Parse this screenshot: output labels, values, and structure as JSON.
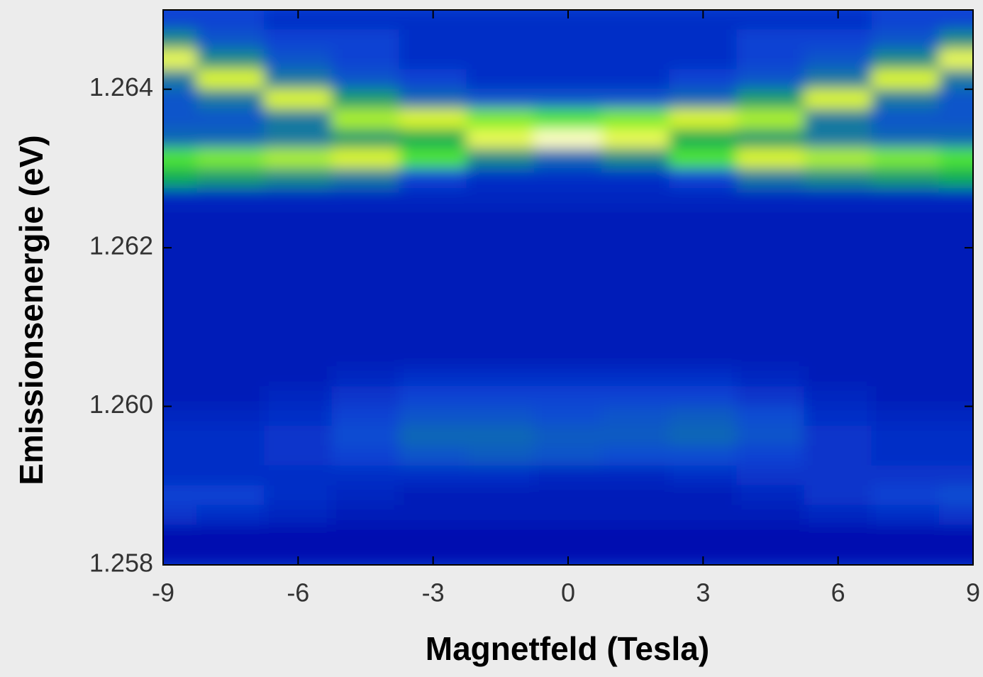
{
  "chart_data": {
    "type": "heatmap",
    "x_label": "Magnetfeld (Tesla)",
    "y_label": "Emissionsenergie (eV)",
    "x": [
      -9,
      -7.5,
      -6,
      -4.5,
      -3,
      -1.5,
      0,
      1.5,
      3,
      4.5,
      6,
      7.5,
      9
    ],
    "y": [
      1.264875,
      1.264625,
      1.264375,
      1.264125,
      1.263875,
      1.263625,
      1.263375,
      1.263125,
      1.262875,
      1.262625,
      1.262375,
      1.262125,
      1.261875,
      1.261625,
      1.261375,
      1.261125,
      1.260875,
      1.260625,
      1.260375,
      1.260125,
      1.259875,
      1.259625,
      1.259375,
      1.259125,
      1.258875,
      1.258625,
      1.258375,
      1.258125
    ],
    "z": [
      [
        25,
        25,
        20,
        20,
        20,
        20,
        20,
        20,
        20,
        20,
        20,
        25,
        25
      ],
      [
        45,
        30,
        25,
        25,
        20,
        20,
        20,
        20,
        20,
        25,
        25,
        30,
        45
      ],
      [
        90,
        45,
        30,
        25,
        20,
        20,
        20,
        20,
        20,
        25,
        30,
        45,
        90
      ],
      [
        40,
        85,
        40,
        30,
        25,
        20,
        20,
        20,
        25,
        30,
        40,
        85,
        40
      ],
      [
        30,
        40,
        85,
        50,
        35,
        30,
        30,
        30,
        35,
        50,
        85,
        40,
        30
      ],
      [
        30,
        30,
        40,
        80,
        85,
        75,
        70,
        75,
        85,
        80,
        40,
        30,
        30
      ],
      [
        35,
        35,
        40,
        50,
        55,
        90,
        100,
        90,
        55,
        50,
        40,
        35,
        35
      ],
      [
        70,
        75,
        80,
        85,
        70,
        45,
        35,
        45,
        70,
        85,
        80,
        75,
        70
      ],
      [
        55,
        50,
        45,
        40,
        25,
        20,
        20,
        20,
        25,
        40,
        45,
        50,
        55
      ],
      [
        18,
        18,
        18,
        18,
        18,
        18,
        18,
        18,
        18,
        18,
        18,
        18,
        18
      ],
      [
        15,
        15,
        15,
        15,
        15,
        15,
        15,
        15,
        15,
        15,
        15,
        15,
        15
      ],
      [
        15,
        15,
        15,
        15,
        15,
        15,
        15,
        15,
        15,
        15,
        15,
        15,
        15
      ],
      [
        15,
        15,
        15,
        15,
        15,
        15,
        15,
        15,
        15,
        15,
        15,
        15,
        15
      ],
      [
        15,
        15,
        15,
        15,
        15,
        15,
        15,
        15,
        15,
        15,
        15,
        15,
        15
      ],
      [
        15,
        15,
        15,
        15,
        15,
        15,
        15,
        15,
        15,
        15,
        15,
        15,
        15
      ],
      [
        15,
        15,
        15,
        15,
        15,
        15,
        15,
        15,
        15,
        15,
        15,
        15,
        15
      ],
      [
        15,
        15,
        15,
        15,
        15,
        15,
        15,
        15,
        15,
        15,
        15,
        15,
        15
      ],
      [
        15,
        15,
        15,
        15,
        15,
        15,
        15,
        15,
        15,
        15,
        15,
        15,
        15
      ],
      [
        15,
        15,
        15,
        18,
        20,
        20,
        20,
        20,
        20,
        18,
        15,
        15,
        15
      ],
      [
        15,
        15,
        18,
        22,
        25,
        25,
        25,
        25,
        25,
        22,
        18,
        15,
        15
      ],
      [
        18,
        18,
        20,
        25,
        30,
        30,
        28,
        30,
        32,
        28,
        20,
        18,
        18
      ],
      [
        20,
        20,
        22,
        28,
        35,
        35,
        32,
        32,
        35,
        30,
        22,
        20,
        20
      ],
      [
        20,
        20,
        22,
        25,
        30,
        32,
        30,
        28,
        28,
        25,
        22,
        20,
        20
      ],
      [
        20,
        20,
        20,
        20,
        20,
        20,
        18,
        18,
        20,
        22,
        22,
        22,
        22
      ],
      [
        25,
        25,
        20,
        18,
        15,
        15,
        15,
        15,
        15,
        18,
        22,
        25,
        28
      ],
      [
        22,
        20,
        18,
        15,
        15,
        15,
        15,
        15,
        15,
        15,
        18,
        20,
        22
      ],
      [
        12,
        12,
        12,
        12,
        12,
        12,
        12,
        12,
        12,
        12,
        12,
        12,
        12
      ],
      [
        12,
        12,
        12,
        12,
        12,
        12,
        12,
        12,
        12,
        12,
        12,
        12,
        12
      ]
    ],
    "colorscale": [
      "#0010b0",
      "#0a48d8",
      "#157e9a",
      "#10b050",
      "#50e830",
      "#e0f820",
      "#ffffc0"
    ],
    "xlim": [
      -9,
      9
    ],
    "xticks": [
      -9,
      -6,
      -3,
      0,
      3,
      6,
      9
    ],
    "ylim": [
      1.258,
      1.265
    ],
    "yticks": [
      1.258,
      {
        "value": 1.26,
        "label": "1.260"
      },
      1.262,
      1.264
    ]
  }
}
